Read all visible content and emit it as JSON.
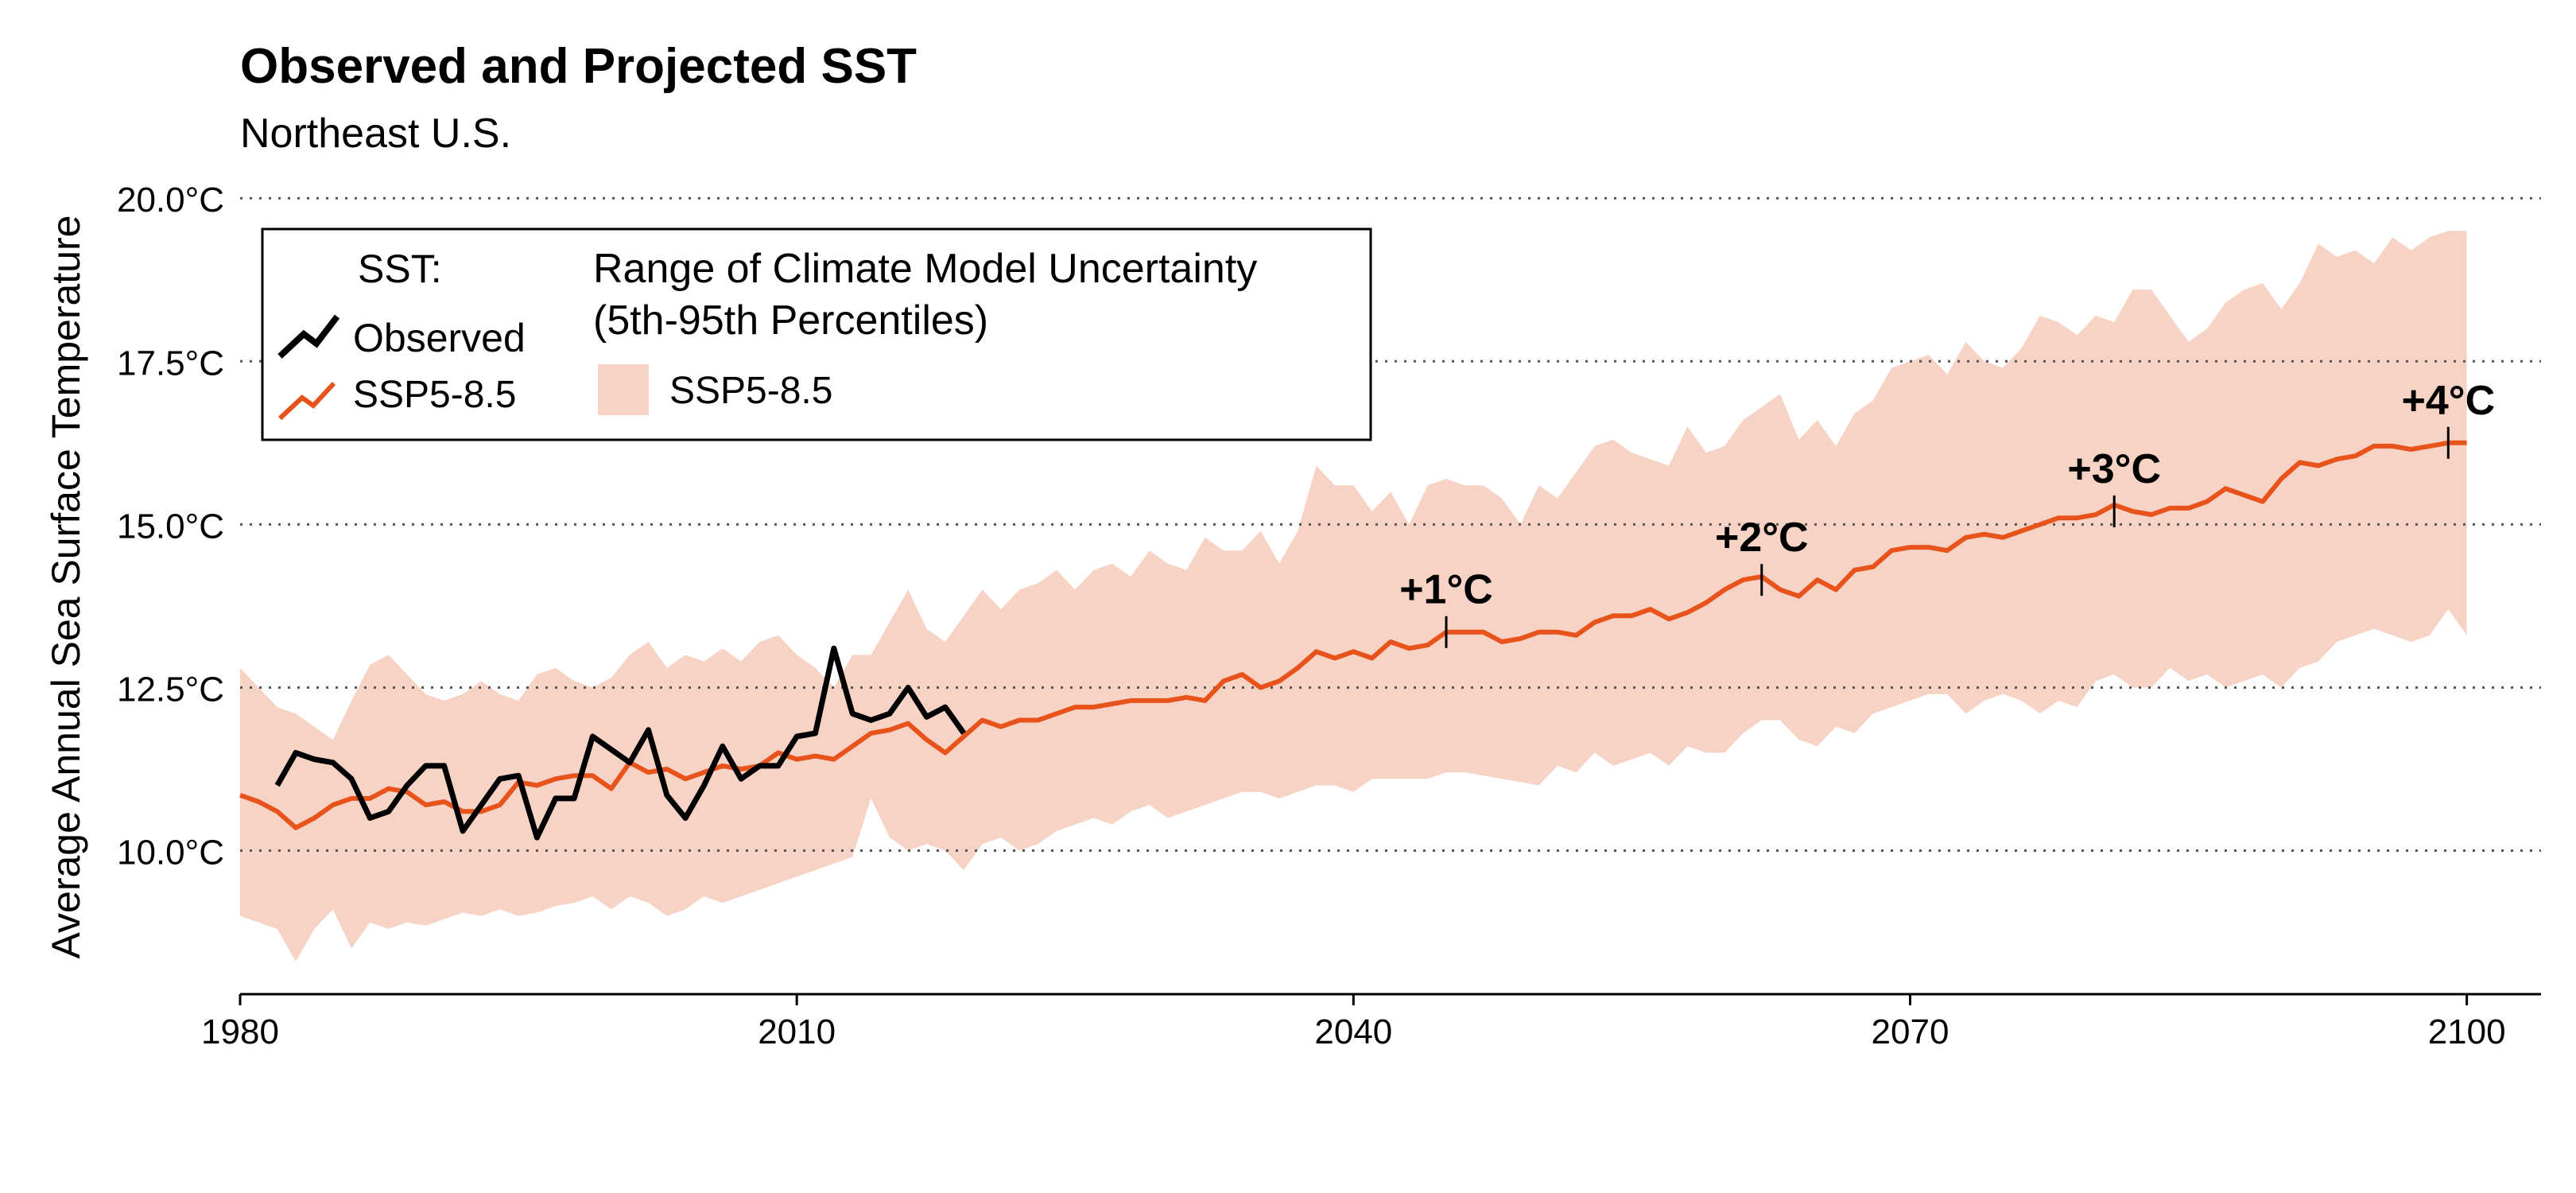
{
  "colors": {
    "observed": "#000000",
    "ssp585": "#e8531b",
    "band": "#f7d3c6",
    "grid": "#555555",
    "text": "#000000"
  },
  "legend": {
    "sst_header": "SST:",
    "observed_label": "Observed",
    "ssp_label": "SSP5-8.5",
    "range_header_line1": "Range of Climate Model Uncertainty",
    "range_header_line2": "(5th-95th Percentiles)",
    "range_ssp_label": "SSP5-8.5",
    "placement": "top-left"
  },
  "chart_data": {
    "type": "line",
    "title": "Observed and Projected SST",
    "subtitle": "Northeast U.S.",
    "ylabel": "Average Annual Sea Surface Temperature",
    "xlabel": "",
    "xlim": [
      1980,
      2104
    ],
    "ylim": [
      7.8,
      20.6
    ],
    "x_ticks": [
      1980,
      2010,
      2040,
      2070,
      2100
    ],
    "x_tick_labels": [
      "1980",
      "2010",
      "2040",
      "2070",
      "2100"
    ],
    "y_ticks": [
      10,
      12.5,
      15,
      17.5,
      20
    ],
    "y_tick_labels": [
      "10.0°C",
      "12.5°C",
      "15.0°C",
      "17.5°C",
      "20.0°C"
    ],
    "grid": "horizontal dotted",
    "series": [
      {
        "name": "Observed",
        "x": [
          1982,
          1983,
          1984,
          1985,
          1986,
          1987,
          1988,
          1989,
          1990,
          1991,
          1992,
          1993,
          1994,
          1995,
          1996,
          1997,
          1998,
          1999,
          2000,
          2001,
          2002,
          2003,
          2004,
          2005,
          2006,
          2007,
          2008,
          2009,
          2010,
          2011,
          2012,
          2013,
          2014,
          2015,
          2016,
          2017,
          2018,
          2019
        ],
        "values": [
          11.0,
          11.5,
          11.4,
          11.35,
          11.1,
          10.5,
          10.6,
          11.0,
          11.3,
          11.3,
          10.3,
          10.7,
          11.1,
          11.15,
          10.2,
          10.8,
          10.8,
          11.75,
          11.55,
          11.35,
          11.85,
          10.85,
          10.5,
          11.0,
          11.6,
          11.1,
          11.3,
          11.3,
          11.75,
          11.8,
          13.1,
          12.1,
          12.0,
          12.1,
          12.5,
          12.05,
          12.2,
          11.8
        ]
      },
      {
        "name": "SSP5-8.5",
        "x": [
          1980,
          1981,
          1982,
          1983,
          1984,
          1985,
          1986,
          1987,
          1988,
          1989,
          1990,
          1991,
          1992,
          1993,
          1994,
          1995,
          1996,
          1997,
          1998,
          1999,
          2000,
          2001,
          2002,
          2003,
          2004,
          2005,
          2006,
          2007,
          2008,
          2009,
          2010,
          2011,
          2012,
          2013,
          2014,
          2015,
          2016,
          2017,
          2018,
          2019,
          2020,
          2021,
          2022,
          2023,
          2024,
          2025,
          2026,
          2027,
          2028,
          2029,
          2030,
          2031,
          2032,
          2033,
          2034,
          2035,
          2036,
          2037,
          2038,
          2039,
          2040,
          2041,
          2042,
          2043,
          2044,
          2045,
          2046,
          2047,
          2048,
          2049,
          2050,
          2051,
          2052,
          2053,
          2054,
          2055,
          2056,
          2057,
          2058,
          2059,
          2060,
          2061,
          2062,
          2063,
          2064,
          2065,
          2066,
          2067,
          2068,
          2069,
          2070,
          2071,
          2072,
          2073,
          2074,
          2075,
          2076,
          2077,
          2078,
          2079,
          2080,
          2081,
          2082,
          2083,
          2084,
          2085,
          2086,
          2087,
          2088,
          2089,
          2090,
          2091,
          2092,
          2093,
          2094,
          2095,
          2096,
          2097,
          2098,
          2099,
          2100
        ],
        "values": [
          10.85,
          10.75,
          10.6,
          10.35,
          10.5,
          10.7,
          10.8,
          10.8,
          10.95,
          10.9,
          10.7,
          10.75,
          10.6,
          10.6,
          10.7,
          11.05,
          11.0,
          11.1,
          11.15,
          11.15,
          10.95,
          11.35,
          11.2,
          11.25,
          11.1,
          11.2,
          11.3,
          11.25,
          11.3,
          11.5,
          11.4,
          11.45,
          11.4,
          11.6,
          11.8,
          11.85,
          11.95,
          11.7,
          11.5,
          11.75,
          12.0,
          11.9,
          12.0,
          12.0,
          12.1,
          12.2,
          12.2,
          12.25,
          12.3,
          12.3,
          12.3,
          12.35,
          12.3,
          12.6,
          12.7,
          12.5,
          12.6,
          12.8,
          13.05,
          12.95,
          13.05,
          12.95,
          13.2,
          13.1,
          13.15,
          13.35,
          13.35,
          13.35,
          13.2,
          13.25,
          13.35,
          13.35,
          13.3,
          13.5,
          13.6,
          13.6,
          13.7,
          13.55,
          13.65,
          13.8,
          14.0,
          14.15,
          14.2,
          14.0,
          13.9,
          14.15,
          14.0,
          14.3,
          14.35,
          14.6,
          14.65,
          14.65,
          14.6,
          14.8,
          14.85,
          14.8,
          14.9,
          15.0,
          15.1,
          15.1,
          15.15,
          15.3,
          15.2,
          15.15,
          15.25,
          15.25,
          15.35,
          15.55,
          15.45,
          15.35,
          15.7,
          15.95,
          15.9,
          16.0,
          16.05,
          16.2,
          16.2,
          16.15,
          16.2,
          16.25,
          16.25
        ]
      }
    ],
    "range_band": {
      "name": "SSP5-8.5",
      "x": [
        1980,
        1981,
        1982,
        1983,
        1984,
        1985,
        1986,
        1987,
        1988,
        1989,
        1990,
        1991,
        1992,
        1993,
        1994,
        1995,
        1996,
        1997,
        1998,
        1999,
        2000,
        2001,
        2002,
        2003,
        2004,
        2005,
        2006,
        2007,
        2008,
        2009,
        2010,
        2011,
        2012,
        2013,
        2014,
        2015,
        2016,
        2017,
        2018,
        2019,
        2020,
        2021,
        2022,
        2023,
        2024,
        2025,
        2026,
        2027,
        2028,
        2029,
        2030,
        2031,
        2032,
        2033,
        2034,
        2035,
        2036,
        2037,
        2038,
        2039,
        2040,
        2041,
        2042,
        2043,
        2044,
        2045,
        2046,
        2047,
        2048,
        2049,
        2050,
        2051,
        2052,
        2053,
        2054,
        2055,
        2056,
        2057,
        2058,
        2059,
        2060,
        2061,
        2062,
        2063,
        2064,
        2065,
        2066,
        2067,
        2068,
        2069,
        2070,
        2071,
        2072,
        2073,
        2074,
        2075,
        2076,
        2077,
        2078,
        2079,
        2080,
        2081,
        2082,
        2083,
        2084,
        2085,
        2086,
        2087,
        2088,
        2089,
        2090,
        2091,
        2092,
        2093,
        2094,
        2095,
        2096,
        2097,
        2098,
        2099,
        2100
      ],
      "upper": [
        12.8,
        12.5,
        12.2,
        12.1,
        11.9,
        11.7,
        12.3,
        12.85,
        13.0,
        12.7,
        12.4,
        12.3,
        12.4,
        12.6,
        12.4,
        12.3,
        12.7,
        12.8,
        12.6,
        12.5,
        12.65,
        13.0,
        13.2,
        12.8,
        13.0,
        12.9,
        13.1,
        12.9,
        13.2,
        13.3,
        13.0,
        12.8,
        12.5,
        13.0,
        13.0,
        13.5,
        14.0,
        13.4,
        13.2,
        13.6,
        14.0,
        13.7,
        14.0,
        14.1,
        14.3,
        14.0,
        14.3,
        14.4,
        14.2,
        14.6,
        14.4,
        14.3,
        14.8,
        14.6,
        14.6,
        14.9,
        14.4,
        14.9,
        15.9,
        15.6,
        15.6,
        15.2,
        15.5,
        15.0,
        15.6,
        15.7,
        15.6,
        15.6,
        15.4,
        15.0,
        15.6,
        15.4,
        15.8,
        16.2,
        16.3,
        16.1,
        16.0,
        15.9,
        16.5,
        16.1,
        16.2,
        16.6,
        16.8,
        17.0,
        16.3,
        16.6,
        16.2,
        16.7,
        16.9,
        17.4,
        17.5,
        17.6,
        17.3,
        17.8,
        17.5,
        17.4,
        17.7,
        18.2,
        18.1,
        17.9,
        18.2,
        18.1,
        18.6,
        18.6,
        18.2,
        17.8,
        18.0,
        18.4,
        18.6,
        18.7,
        18.3,
        18.7,
        19.3,
        19.1,
        19.2,
        19.0,
        19.4,
        19.2,
        19.4,
        19.5,
        19.5
      ],
      "lower": [
        9.0,
        8.9,
        8.8,
        8.3,
        8.8,
        9.1,
        8.5,
        8.9,
        8.8,
        8.9,
        8.85,
        8.95,
        9.05,
        9.0,
        9.1,
        9.0,
        9.05,
        9.15,
        9.2,
        9.3,
        9.1,
        9.3,
        9.2,
        9.0,
        9.1,
        9.3,
        9.2,
        9.3,
        9.4,
        9.5,
        9.6,
        9.7,
        9.8,
        9.9,
        10.8,
        10.2,
        10.0,
        10.1,
        10.0,
        9.7,
        10.1,
        10.2,
        10.0,
        10.1,
        10.3,
        10.4,
        10.5,
        10.4,
        10.6,
        10.7,
        10.5,
        10.6,
        10.7,
        10.8,
        10.9,
        10.9,
        10.8,
        10.9,
        11.0,
        11.0,
        10.9,
        11.1,
        11.1,
        11.1,
        11.1,
        11.2,
        11.2,
        11.15,
        11.1,
        11.05,
        11.0,
        11.3,
        11.2,
        11.5,
        11.3,
        11.4,
        11.5,
        11.3,
        11.6,
        11.5,
        11.5,
        11.8,
        12.0,
        12.0,
        11.7,
        11.6,
        11.9,
        11.8,
        12.1,
        12.2,
        12.3,
        12.4,
        12.4,
        12.1,
        12.3,
        12.4,
        12.3,
        12.1,
        12.3,
        12.2,
        12.6,
        12.7,
        12.5,
        12.5,
        12.8,
        12.6,
        12.7,
        12.5,
        12.6,
        12.7,
        12.5,
        12.8,
        12.9,
        13.2,
        13.3,
        13.4,
        13.3,
        13.2,
        13.3,
        13.7,
        13.3
      ]
    },
    "annotations": [
      {
        "label": "+1°C",
        "x": 2045,
        "y": 13.35
      },
      {
        "label": "+2°C",
        "x": 2062,
        "y": 14.15
      },
      {
        "label": "+3°C",
        "x": 2081,
        "y": 15.2
      },
      {
        "label": "+4°C",
        "x": 2099,
        "y": 16.25
      }
    ]
  }
}
